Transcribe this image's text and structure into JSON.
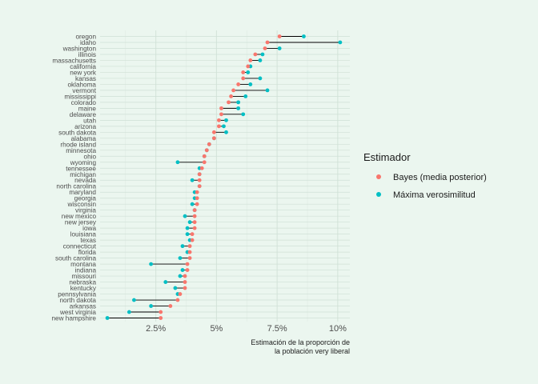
{
  "chart_data": {
    "type": "dot",
    "xlabel": [
      "Estimación de la proporción de",
      "la población very liberal"
    ],
    "ylabel": "",
    "xlim": [
      0.2,
      10.5
    ],
    "x_ticks": [
      2.5,
      5,
      7.5,
      10
    ],
    "x_tick_labels": [
      "2.5%",
      "5%",
      "7.5%",
      "10%"
    ],
    "grid": true,
    "legend_position": "right",
    "legend": {
      "title": "Estimador",
      "entries": [
        {
          "label": "Bayes (media posterior)",
          "color": "#f8766d"
        },
        {
          "label": "Máxima verosimilitud",
          "color": "#00bfc4"
        }
      ]
    },
    "categories": [
      "oregon",
      "idaho",
      "washington",
      "illinois",
      "massachusetts",
      "california",
      "new york",
      "kansas",
      "oklahoma",
      "vermont",
      "mississippi",
      "colorado",
      "maine",
      "delaware",
      "utah",
      "arizona",
      "south dakota",
      "alabama",
      "rhode island",
      "minnesota",
      "ohio",
      "wyoming",
      "tennessee",
      "michigan",
      "nevada",
      "north carolina",
      "maryland",
      "georgia",
      "wisconsin",
      "virginia",
      "new mexico",
      "new jersey",
      "iowa",
      "louisiana",
      "texas",
      "connecticut",
      "florida",
      "south carolina",
      "montana",
      "indiana",
      "missouri",
      "nebraska",
      "kentucky",
      "pennsylvania",
      "north dakota",
      "arkansas",
      "west virginia",
      "new hampshire"
    ],
    "series": [
      {
        "name": "Bayes (media posterior)",
        "color": "#f8766d",
        "values": [
          7.6,
          7.1,
          7.0,
          6.6,
          6.4,
          6.3,
          6.1,
          6.1,
          5.9,
          5.7,
          5.6,
          5.5,
          5.2,
          5.2,
          5.1,
          5.1,
          4.9,
          4.9,
          4.7,
          4.6,
          4.5,
          4.5,
          4.4,
          4.3,
          4.3,
          4.3,
          4.2,
          4.2,
          4.2,
          4.1,
          4.1,
          4.1,
          4.1,
          4.0,
          4.0,
          3.9,
          3.9,
          3.9,
          3.8,
          3.8,
          3.7,
          3.7,
          3.7,
          3.5,
          3.4,
          3.1,
          2.7,
          2.7
        ]
      },
      {
        "name": "Máxima verosimilitud",
        "color": "#00bfc4",
        "values": [
          8.6,
          10.1,
          7.6,
          6.9,
          6.8,
          6.4,
          6.3,
          6.8,
          6.4,
          7.1,
          6.2,
          5.9,
          5.9,
          6.1,
          5.4,
          5.3,
          5.4,
          4.9,
          4.7,
          4.6,
          4.5,
          3.4,
          4.3,
          4.3,
          4.0,
          4.3,
          4.1,
          4.1,
          4.0,
          4.1,
          3.7,
          3.9,
          3.8,
          3.8,
          3.9,
          3.6,
          3.8,
          3.5,
          2.3,
          3.6,
          3.5,
          2.9,
          3.3,
          3.4,
          1.6,
          2.3,
          1.4,
          0.5
        ]
      }
    ]
  }
}
